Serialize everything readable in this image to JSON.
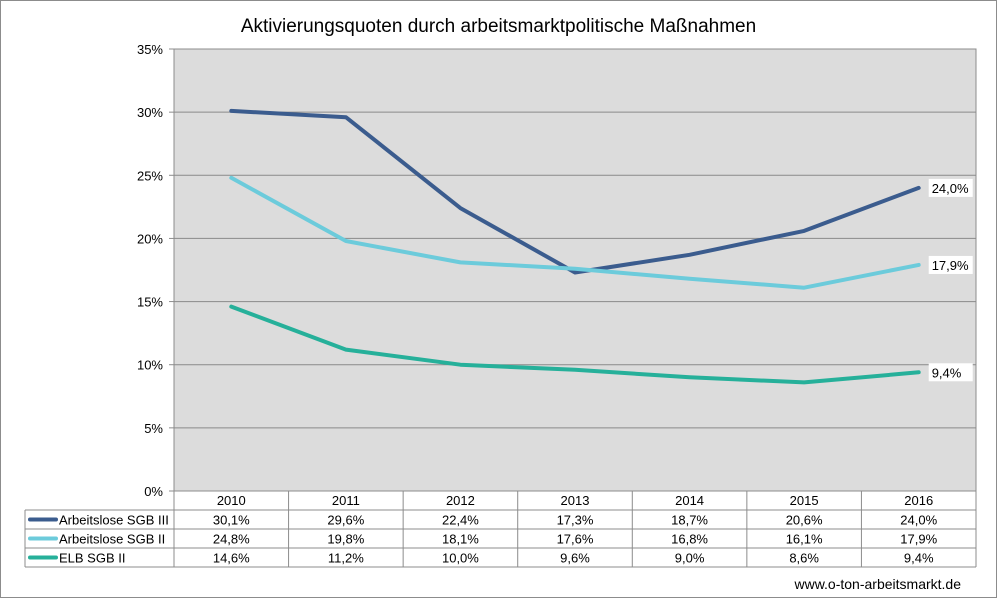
{
  "chart_data": {
    "type": "line",
    "title": "Aktivierungsquoten durch arbeitsmarktpolitische Maßnahmen",
    "categories": [
      "2010",
      "2011",
      "2012",
      "2013",
      "2014",
      "2015",
      "2016"
    ],
    "y_ticks": [
      "0%",
      "5%",
      "10%",
      "15%",
      "20%",
      "25%",
      "30%",
      "35%"
    ],
    "ylim": [
      0,
      35
    ],
    "grid": true,
    "legend": "data-table-below",
    "series": [
      {
        "name": "Arbeitslose SGB III",
        "color": "#3b5c8e",
        "values": [
          30.1,
          29.6,
          22.4,
          17.3,
          18.7,
          20.6,
          24.0
        ],
        "labels": [
          "30,1%",
          "29,6%",
          "22,4%",
          "17,3%",
          "18,7%",
          "20,6%",
          "24,0%"
        ],
        "end_label": "24,0%"
      },
      {
        "name": "Arbeitslose SGB II",
        "color": "#6ccbdb",
        "values": [
          24.8,
          19.8,
          18.1,
          17.6,
          16.8,
          16.1,
          17.9
        ],
        "labels": [
          "24,8%",
          "19,8%",
          "18,1%",
          "17,6%",
          "16,8%",
          "16,1%",
          "17,9%"
        ],
        "end_label": "17,9%"
      },
      {
        "name": "ELB SGB II",
        "color": "#26b09a",
        "values": [
          14.6,
          11.2,
          10.0,
          9.6,
          9.0,
          8.6,
          9.4
        ],
        "labels": [
          "14,6%",
          "11,2%",
          "10,0%",
          "9,6%",
          "9,0%",
          "8,6%",
          "9,4%"
        ],
        "end_label": "9,4%"
      }
    ]
  },
  "footer": {
    "source": "www.o-ton-arbeitsmarkt.de"
  }
}
